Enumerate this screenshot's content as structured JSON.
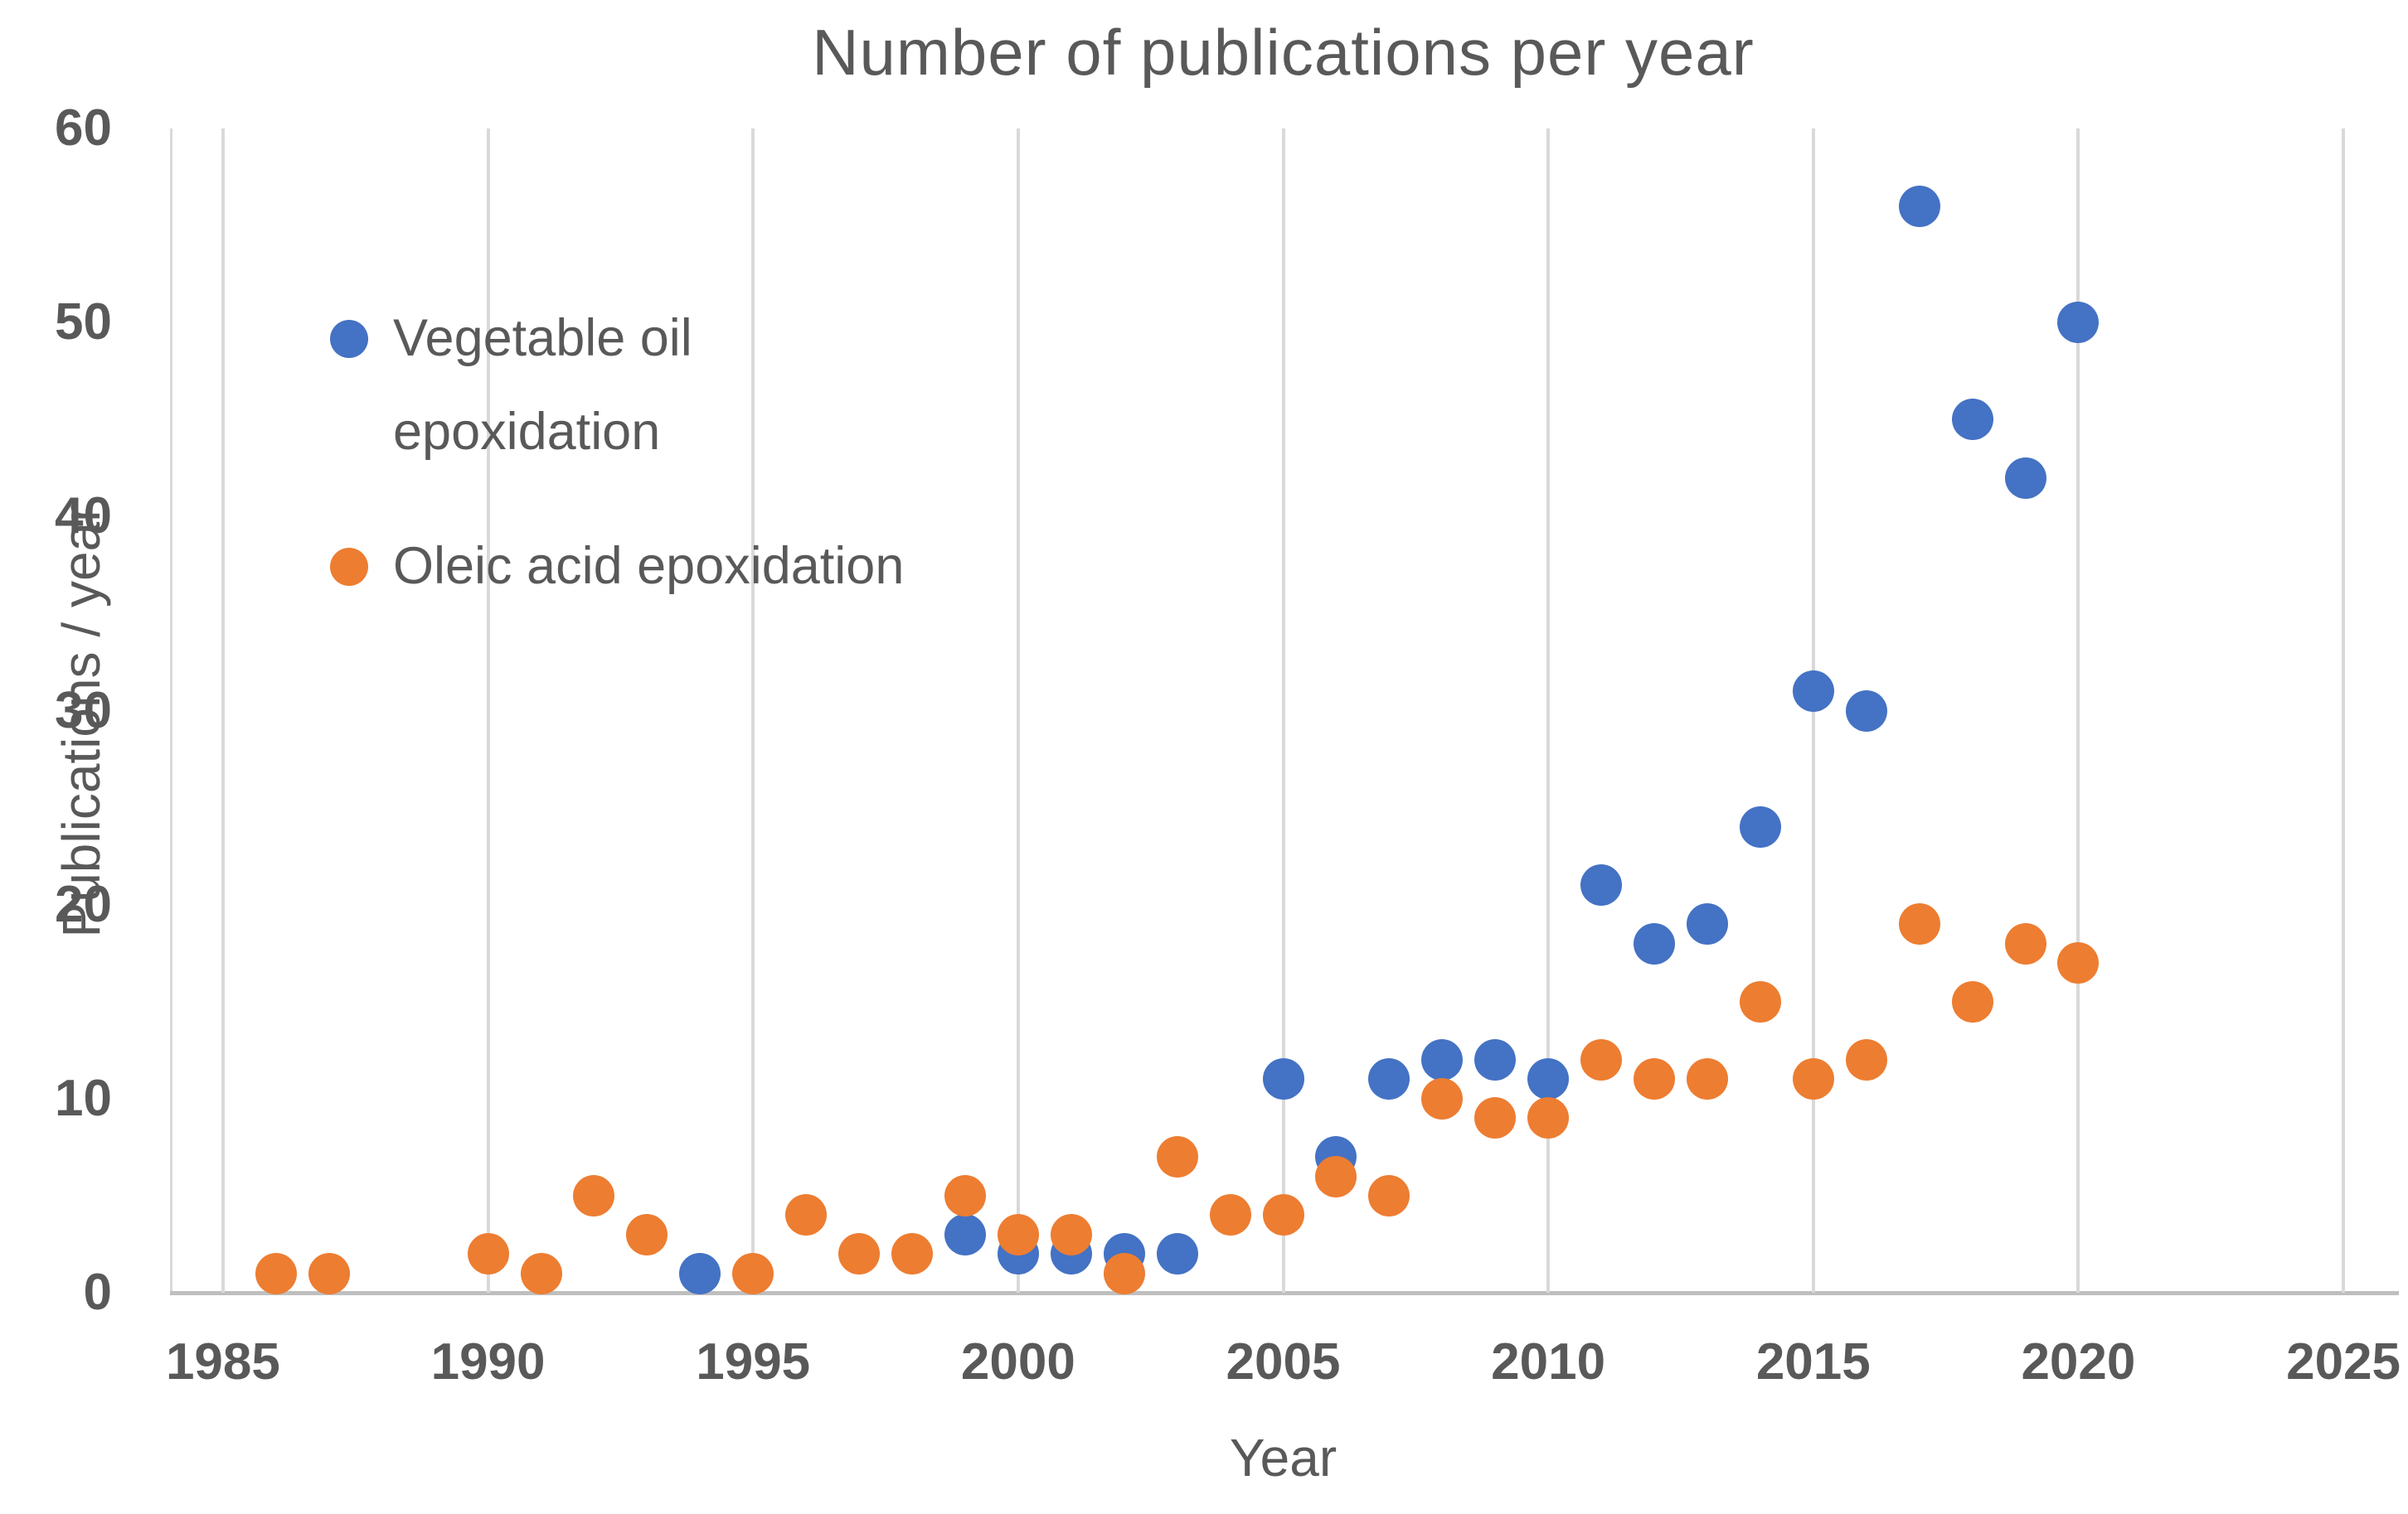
{
  "chart_data": {
    "type": "scatter",
    "title": "Number of publications per year",
    "xlabel": "Year",
    "ylabel": "Publications / year",
    "xlim": [
      1984,
      2026
    ],
    "ylim": [
      0,
      60
    ],
    "x_ticks": [
      1985,
      1990,
      1995,
      2000,
      2005,
      2010,
      2015,
      2020,
      2025
    ],
    "y_ticks": [
      0,
      10,
      20,
      30,
      40,
      50,
      60
    ],
    "grid": "vertical-only",
    "legend_position": "inside-top-left",
    "colors": {
      "background": "#FFFFFF",
      "text": "#595959",
      "gridline": "#D9D9D9",
      "axis_line": "#BFBFBF",
      "series_blue": "#4472C4",
      "series_orange": "#ED7D31"
    },
    "series": [
      {
        "name": "Vegetable oil epoxidation",
        "color": "#4472C4",
        "points": [
          [
            1994,
            1
          ],
          [
            1999,
            3
          ],
          [
            2000,
            2
          ],
          [
            2001,
            2
          ],
          [
            2002,
            2
          ],
          [
            2003,
            2
          ],
          [
            2005,
            11
          ],
          [
            2006,
            7
          ],
          [
            2007,
            11
          ],
          [
            2008,
            12
          ],
          [
            2009,
            12
          ],
          [
            2010,
            11
          ],
          [
            2011,
            21
          ],
          [
            2012,
            18
          ],
          [
            2013,
            19
          ],
          [
            2014,
            24
          ],
          [
            2015,
            31
          ],
          [
            2016,
            30
          ],
          [
            2017,
            56
          ],
          [
            2018,
            45
          ],
          [
            2019,
            42
          ],
          [
            2020,
            50
          ]
        ]
      },
      {
        "name": "Oleic acid epoxidation",
        "color": "#ED7D31",
        "points": [
          [
            1986,
            1
          ],
          [
            1987,
            1
          ],
          [
            1990,
            2
          ],
          [
            1991,
            1
          ],
          [
            1992,
            5
          ],
          [
            1993,
            3
          ],
          [
            1995,
            1
          ],
          [
            1996,
            4
          ],
          [
            1997,
            2
          ],
          [
            1998,
            2
          ],
          [
            1999,
            5
          ],
          [
            2000,
            3
          ],
          [
            2001,
            3
          ],
          [
            2002,
            1
          ],
          [
            2003,
            7
          ],
          [
            2004,
            4
          ],
          [
            2005,
            4
          ],
          [
            2006,
            6
          ],
          [
            2007,
            5
          ],
          [
            2008,
            10
          ],
          [
            2009,
            9
          ],
          [
            2010,
            9
          ],
          [
            2011,
            12
          ],
          [
            2012,
            11
          ],
          [
            2013,
            11
          ],
          [
            2014,
            15
          ],
          [
            2015,
            11
          ],
          [
            2016,
            12
          ],
          [
            2017,
            19
          ],
          [
            2018,
            15
          ],
          [
            2019,
            18
          ],
          [
            2020,
            17
          ]
        ]
      }
    ]
  }
}
